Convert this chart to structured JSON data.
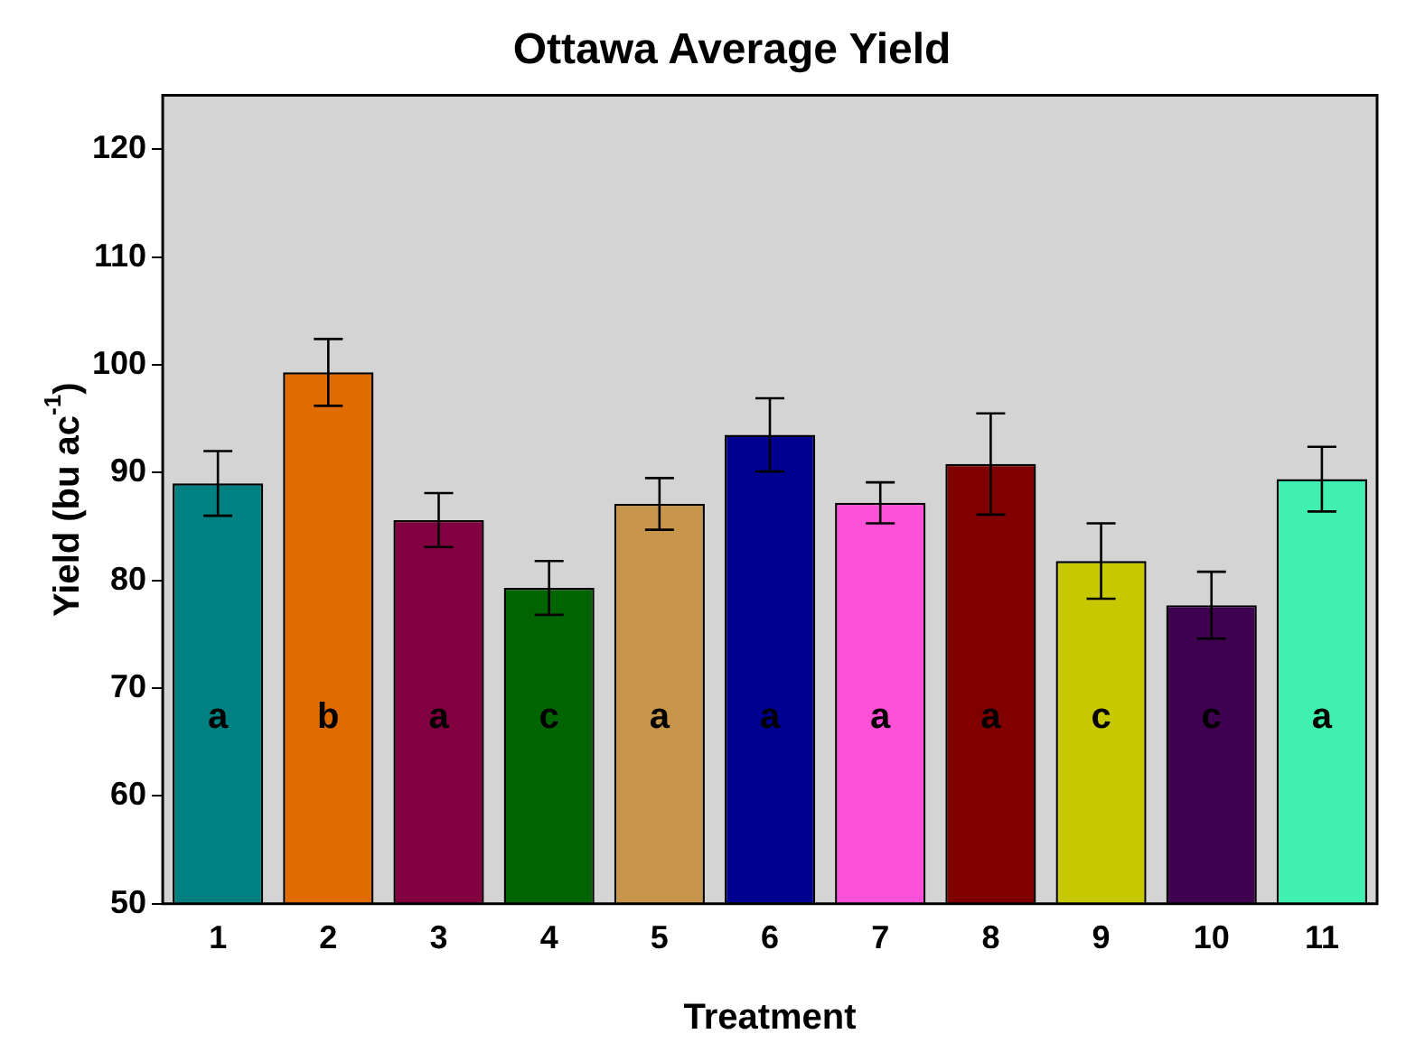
{
  "chart_data": {
    "type": "bar",
    "title": "Ottawa Average Yield",
    "xlabel": "Treatment",
    "ylabel": "Yield (bu ac$^{-1}$)",
    "categories": [
      "1",
      "2",
      "3",
      "4",
      "5",
      "6",
      "7",
      "8",
      "9",
      "10",
      "11"
    ],
    "values": [
      89.0,
      99.3,
      85.6,
      79.3,
      87.1,
      93.5,
      87.2,
      90.8,
      81.8,
      77.7,
      89.4
    ],
    "errors": [
      3.0,
      3.1,
      2.5,
      2.5,
      2.4,
      3.4,
      1.9,
      4.7,
      3.5,
      3.1,
      3.0
    ],
    "colors": [
      "#008080",
      "#e06c00",
      "#800040",
      "#006400",
      "#c8964b",
      "#000090",
      "#ff50d8",
      "#800000",
      "#c8c800",
      "#400050",
      "#40f0b0"
    ],
    "ylim": [
      50,
      125
    ],
    "yticks": [
      50,
      60,
      70,
      80,
      90,
      100,
      110,
      120
    ],
    "grid": false,
    "legend": false,
    "annotations": [
      "a",
      "b",
      "a",
      "c",
      "a",
      "a",
      "a",
      "a",
      "c",
      "c",
      "a"
    ]
  }
}
